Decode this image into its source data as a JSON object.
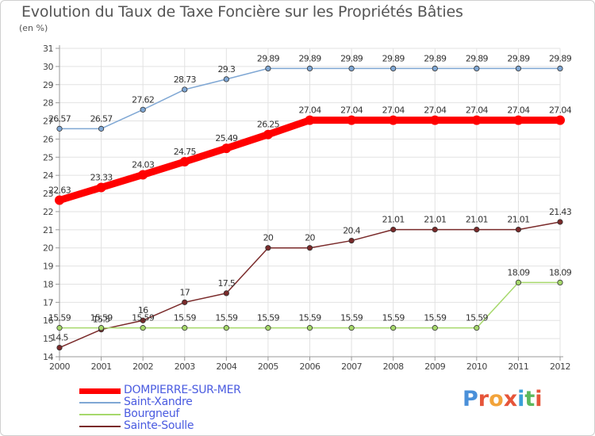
{
  "header": {
    "title": "Evolution du Taux de Taxe Foncière sur les Propriétés Bâties",
    "subtitle": "(en %)"
  },
  "logo": {
    "text": "Proxiti",
    "colors": [
      "#4a90d9",
      "#e6553a",
      "#f2a33a",
      "#e6553a",
      "#3aa0d9",
      "#5cb85c",
      "#e6553a"
    ]
  },
  "chart_data": {
    "type": "line",
    "x": [
      "2000",
      "2001",
      "2002",
      "2003",
      "2004",
      "2005",
      "2006",
      "2007",
      "2008",
      "2009",
      "2010",
      "2011",
      "2012"
    ],
    "ylim": [
      14,
      31
    ],
    "yticks": [
      "14",
      "15",
      "16",
      "17",
      "18",
      "19",
      "20",
      "21",
      "22",
      "23",
      "24",
      "25",
      "26",
      "27",
      "28",
      "29",
      "30",
      "31"
    ],
    "grid": true,
    "legend_position": "bottom-left",
    "series": [
      {
        "name": "DOMPIERRE-SUR-MER",
        "color": "#ff0000",
        "width": "thick",
        "values": [
          22.63,
          23.33,
          24.03,
          24.75,
          25.49,
          26.25,
          27.04,
          27.04,
          27.04,
          27.04,
          27.04,
          27.04,
          27.04
        ],
        "labels": [
          "22.63",
          "23.33",
          "24.03",
          "24.75",
          "25.49",
          "26.25",
          "27.04",
          "27.04",
          "27.04",
          "27.04",
          "27.04",
          "27.04",
          "27.04"
        ]
      },
      {
        "name": "Saint-Xandre",
        "color": "#7fa7d4",
        "width": "thin",
        "values": [
          26.57,
          26.57,
          27.62,
          28.73,
          29.3,
          29.89,
          29.89,
          29.89,
          29.89,
          29.89,
          29.89,
          29.89,
          29.89
        ],
        "labels": [
          "26.57",
          "26.57",
          "27.62",
          "28.73",
          "29.3",
          "29.89",
          "29.89",
          "29.89",
          "29.89",
          "29.89",
          "29.89",
          "29.89",
          "29.89"
        ]
      },
      {
        "name": "Bourgneuf",
        "color": "#a6d86b",
        "width": "thin",
        "values": [
          15.59,
          15.59,
          15.59,
          15.59,
          15.59,
          15.59,
          15.59,
          15.59,
          15.59,
          15.59,
          15.59,
          18.09,
          18.09
        ],
        "labels": [
          "15.59",
          "15.59",
          "15.59",
          "15.59",
          "15.59",
          "15.59",
          "15.59",
          "15.59",
          "15.59",
          "15.59",
          "15.59",
          "18.09",
          "18.09"
        ]
      },
      {
        "name": "Sainte-Soulle",
        "color": "#7a2a2a",
        "width": "thin",
        "values": [
          14.5,
          15.5,
          16,
          17,
          17.5,
          20,
          20,
          20.4,
          21.01,
          21.01,
          21.01,
          21.01,
          21.43
        ],
        "labels": [
          "14.5",
          "15.5",
          "16",
          "17",
          "17.5",
          "20",
          "20",
          "20.4",
          "21.01",
          "21.01",
          "21.01",
          "21.01",
          "21.43"
        ]
      }
    ]
  }
}
